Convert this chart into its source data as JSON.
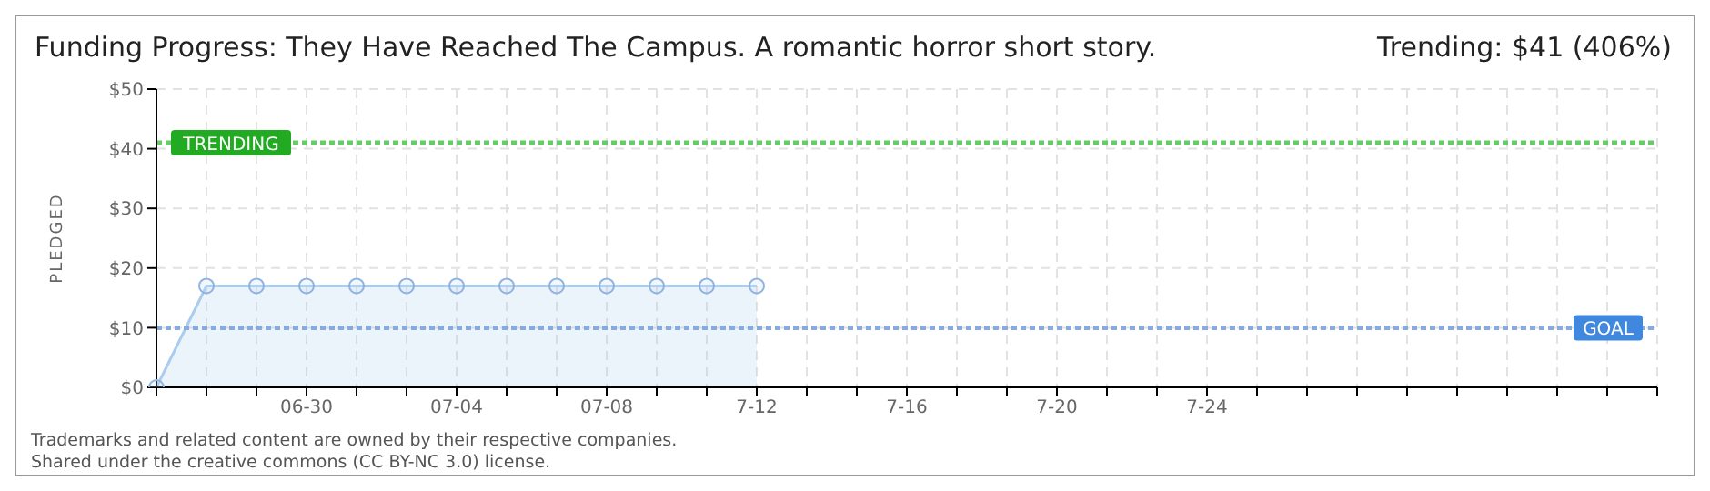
{
  "chart_data": {
    "type": "area",
    "title": "Funding Progress: They Have Reached The Campus. A romantic horror short story.",
    "ylabel": "PLEDGED",
    "categories": [
      null,
      null,
      null,
      "06-30",
      null,
      null,
      "07-04",
      null,
      null,
      "07-08",
      null,
      null,
      "7-12",
      null,
      null,
      "7-16",
      null,
      null,
      "7-20",
      null,
      null,
      "7-24",
      null,
      null,
      null,
      null,
      null,
      null,
      null,
      null,
      null
    ],
    "series": [
      {
        "color": "#aaccee",
        "values": [
          0,
          17,
          17,
          17,
          17,
          17,
          17,
          17,
          17,
          17,
          17,
          17,
          17,
          null,
          null,
          null,
          null,
          null,
          null,
          null,
          null,
          null,
          null,
          null,
          null,
          null,
          null,
          null,
          null,
          null,
          null
        ]
      }
    ],
    "ylim": [
      0,
      50
    ],
    "yticks": [
      {
        "value": 0,
        "label": "$0"
      },
      {
        "value": 10,
        "label": "$10"
      },
      {
        "value": 20,
        "label": "$20"
      },
      {
        "value": 30,
        "label": "$30"
      },
      {
        "value": 40,
        "label": "$40"
      },
      {
        "value": 50,
        "label": "$50"
      }
    ],
    "grid": true,
    "marker": "circle",
    "line_style": "solid",
    "ref_lines": [
      {
        "axis": "y",
        "value": 41,
        "label": "TRENDING",
        "color": "#66cc66",
        "line_style": "dotted"
      },
      {
        "axis": "y",
        "value": 10,
        "label": "GOAL",
        "color": "#88aadd",
        "line_style": "dotted"
      }
    ],
    "annotations": [
      "Trending: $41 (406%)",
      "Trademarks and related content are owned by their respective companies.",
      "Shared under the creative commons (CC BY-NC 3.0) license."
    ]
  }
}
